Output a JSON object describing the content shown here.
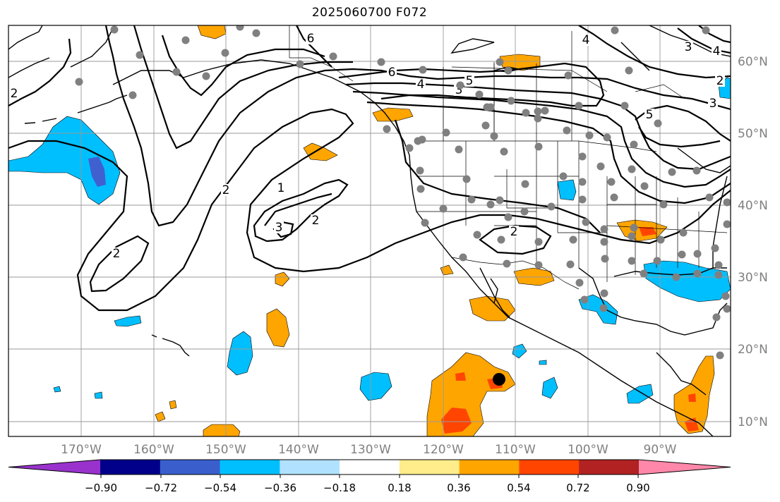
{
  "title": "2025060700 F072",
  "map": {
    "lon_range": [
      -180,
      -80
    ],
    "lat_range": [
      8,
      65
    ],
    "lon_ticks": [
      "170°W",
      "160°W",
      "150°W",
      "140°W",
      "130°W",
      "120°W",
      "110°W",
      "100°W",
      "90°W"
    ],
    "lat_ticks": [
      "60°N",
      "50°N",
      "40°N",
      "30°N",
      "20°N",
      "10°N"
    ],
    "grid": true,
    "contour_labels": [
      "2",
      "2",
      "2",
      "3",
      "1",
      "2",
      "3",
      "4",
      "5",
      "6",
      "6",
      "4",
      "5",
      "3",
      "2",
      "3",
      "4",
      "2"
    ],
    "colors": {
      "positive_weak": "#ffa500",
      "positive_mid": "#ff4500",
      "negative_weak": "#00bfff",
      "negative_mid": "#4060d0",
      "station_dot": "#808080",
      "storm_marker": "#000000"
    }
  },
  "colorbar": {
    "labels": [
      "−0.90",
      "−0.72",
      "−0.54",
      "−0.36",
      "−0.18",
      "0.18",
      "0.36",
      "0.54",
      "0.72",
      "0.90"
    ],
    "colors": [
      "#9932cc",
      "#00008b",
      "#3a5fcd",
      "#00bfff",
      "#b0e2ff",
      "#ffffff",
      "#ffec8b",
      "#ffa500",
      "#ff4500",
      "#b22222",
      "#ff88aa"
    ]
  }
}
